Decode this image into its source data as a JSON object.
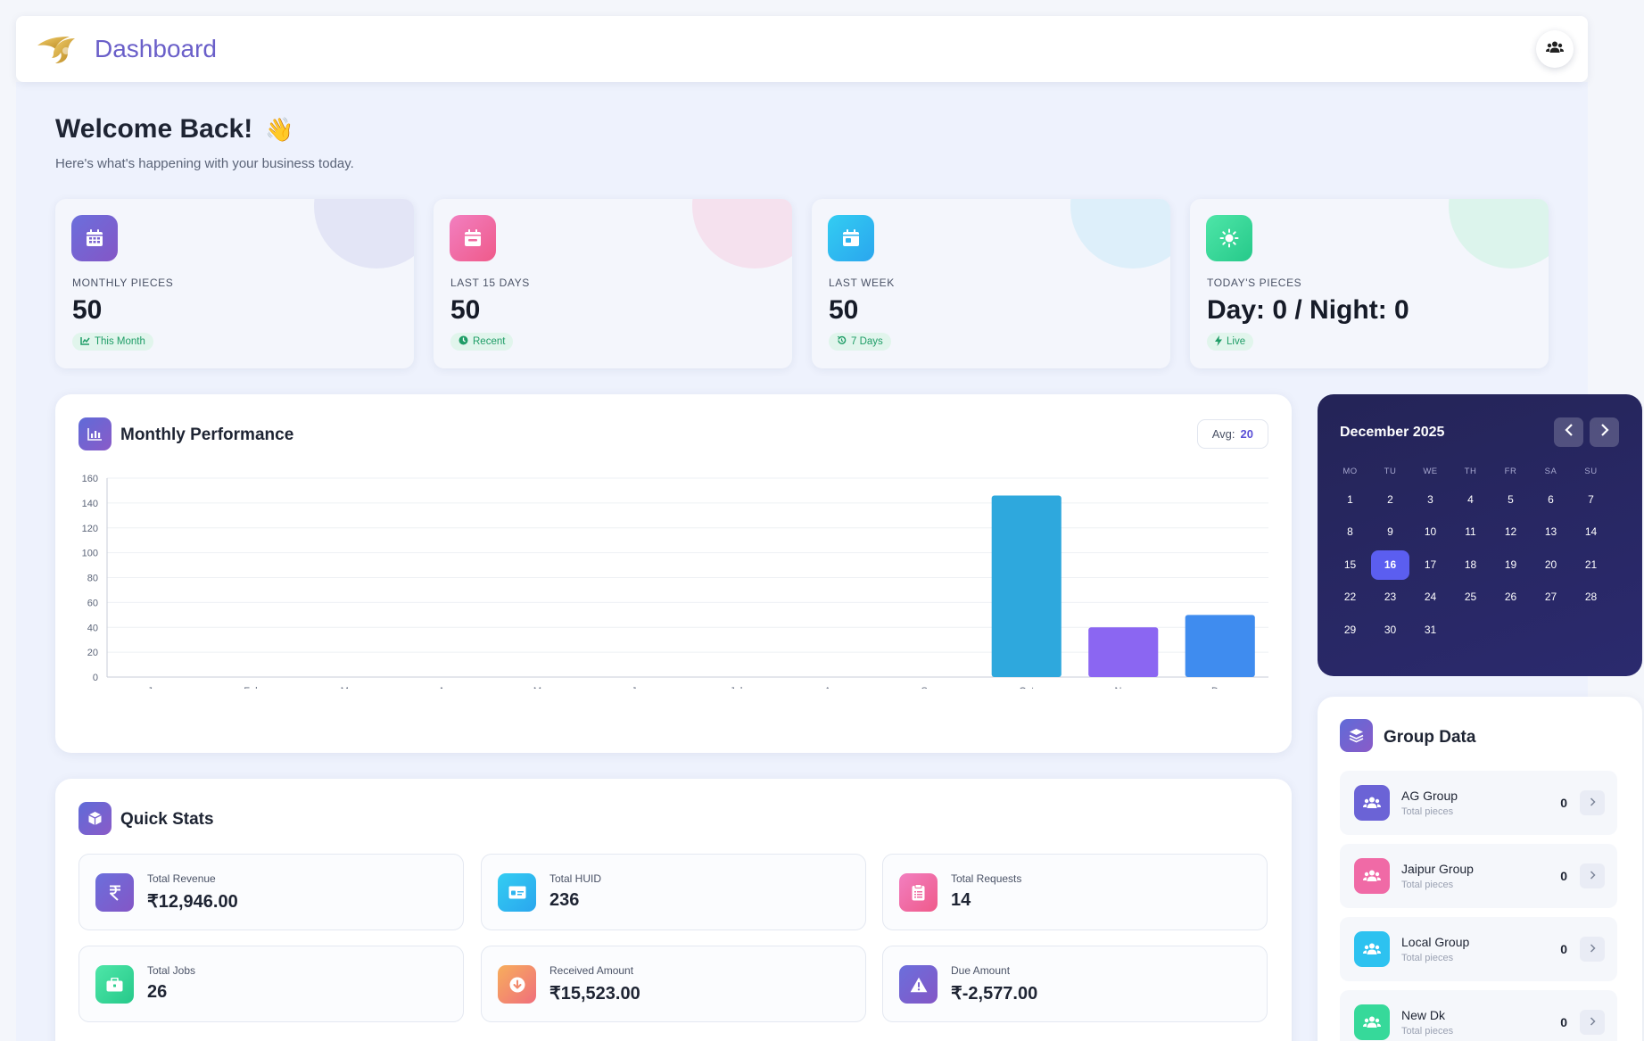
{
  "header": {
    "title": "Dashboard",
    "logo_icon": "wing-logo-icon",
    "users_icon": "users-icon"
  },
  "welcome": {
    "title": "Welcome Back!",
    "emoji": "👋",
    "subtitle": "Here's what's happening with your business today."
  },
  "stats": [
    {
      "label": "MONTHLY PIECES",
      "value": "50",
      "badge": "This Month",
      "icon": "calendar-grid-icon",
      "badge_icon": "chart-line-icon"
    },
    {
      "label": "LAST 15 DAYS",
      "value": "50",
      "badge": "Recent",
      "icon": "calendar-minus-icon",
      "badge_icon": "clock-icon"
    },
    {
      "label": "LAST WEEK",
      "value": "50",
      "badge": "7 Days",
      "icon": "calendar-week-icon",
      "badge_icon": "history-icon"
    },
    {
      "label": "TODAY'S PIECES",
      "value": "Day: 0 / Night: 0",
      "badge": "Live",
      "icon": "sun-icon",
      "badge_icon": "bolt-icon"
    }
  ],
  "performance": {
    "title": "Monthly Performance",
    "avg_label": "Avg:",
    "avg_value": "20"
  },
  "chart_data": {
    "type": "bar",
    "categories": [
      "Jan",
      "Feb",
      "Mar",
      "Apr",
      "May",
      "Jun",
      "Jul",
      "Aug",
      "Sep",
      "Oct",
      "Nov",
      "Dec"
    ],
    "values": [
      0,
      0,
      0,
      0,
      0,
      0,
      0,
      0,
      0,
      146,
      40,
      50
    ],
    "bar_colors": {
      "Oct": "#2ea8dd",
      "Nov": "#8b66f2",
      "Dec": "#3f8cef"
    },
    "ylim": [
      0,
      160
    ],
    "yticks": [
      0,
      20,
      40,
      60,
      80,
      100,
      120,
      140,
      160
    ],
    "grid": true
  },
  "calendar": {
    "title": "December 2025",
    "weekdays": [
      "MO",
      "TU",
      "WE",
      "TH",
      "FR",
      "SA",
      "SU"
    ],
    "weeks": [
      [
        "1",
        "2",
        "3",
        "4",
        "5",
        "6",
        "7"
      ],
      [
        "8",
        "9",
        "10",
        "11",
        "12",
        "13",
        "14"
      ],
      [
        "15",
        "16",
        "17",
        "18",
        "19",
        "20",
        "21"
      ],
      [
        "22",
        "23",
        "24",
        "25",
        "26",
        "27",
        "28"
      ],
      [
        "29",
        "30",
        "31",
        "",
        "",
        "",
        ""
      ]
    ],
    "today": "16"
  },
  "groups": {
    "title": "Group Data",
    "items": [
      {
        "name": "AG Group",
        "sub": "Total pieces",
        "value": "0",
        "color": "#6b63d6"
      },
      {
        "name": "Jaipur Group",
        "sub": "Total pieces",
        "value": "0",
        "color": "#f06aa6"
      },
      {
        "name": "Local Group",
        "sub": "Total pieces",
        "value": "0",
        "color": "#2dc2f0"
      },
      {
        "name": "New Dk",
        "sub": "Total pieces",
        "value": "0",
        "color": "#36d99a"
      }
    ]
  },
  "quick_stats": {
    "title": "Quick Stats",
    "items": [
      {
        "label": "Total Revenue",
        "value": "₹12,946.00",
        "icon": "rupee-icon"
      },
      {
        "label": "Total HUID",
        "value": "236",
        "icon": "id-card-icon"
      },
      {
        "label": "Total Requests",
        "value": "14",
        "icon": "clipboard-list-icon"
      },
      {
        "label": "Total Jobs",
        "value": "26",
        "icon": "briefcase-icon"
      },
      {
        "label": "Received Amount",
        "value": "₹15,523.00",
        "icon": "arrow-down-circle-icon"
      },
      {
        "label": "Due Amount",
        "value": "₹-2,577.00",
        "icon": "warning-icon"
      }
    ]
  }
}
